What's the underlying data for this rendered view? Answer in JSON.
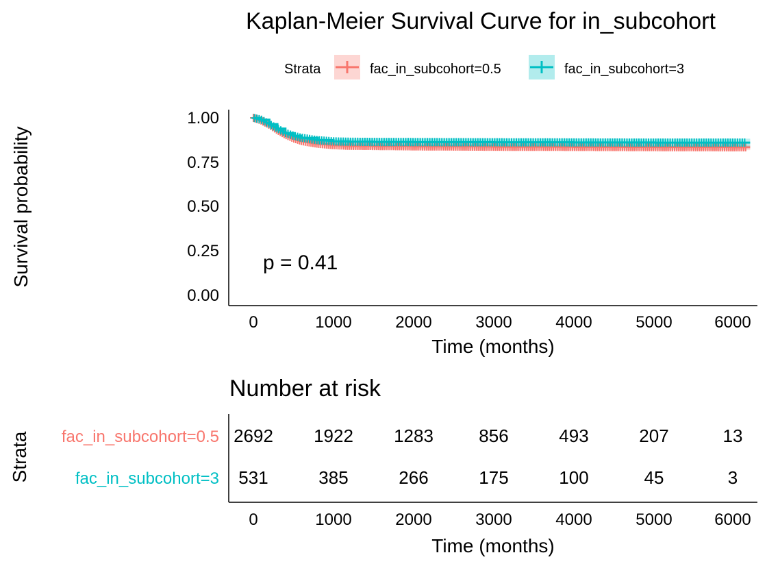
{
  "chart_data": [
    {
      "type": "line",
      "title": "Kaplan-Meier Survival Curve for in_subcohort",
      "xlabel": "Time (months)",
      "ylabel": "Survival probability",
      "xlim": [
        -300,
        6200
      ],
      "ylim": [
        0,
        1
      ],
      "x_ticks": [
        "0",
        "1000",
        "2000",
        "3000",
        "4000",
        "5000",
        "6000"
      ],
      "y_ticks": [
        "0.00",
        "0.25",
        "0.50",
        "0.75",
        "1.00"
      ],
      "legend": {
        "title": "Strata",
        "position": "top"
      },
      "annotation": "p = 0.41",
      "series": [
        {
          "name": "fac_in_subcohort=0.5",
          "color": "#F8766D",
          "x": [
            0,
            100,
            200,
            300,
            400,
            500,
            600,
            800,
            1000,
            1200,
            1500,
            2000,
            3000,
            4000,
            5000,
            6000,
            6200
          ],
          "y": [
            1.0,
            0.985,
            0.96,
            0.93,
            0.905,
            0.885,
            0.87,
            0.855,
            0.847,
            0.843,
            0.842,
            0.84,
            0.838,
            0.837,
            0.836,
            0.835,
            0.835
          ]
        },
        {
          "name": "fac_in_subcohort=3",
          "color": "#00BFC4",
          "x": [
            0,
            100,
            200,
            300,
            400,
            500,
            600,
            800,
            1000,
            1200,
            1500,
            2000,
            3000,
            4000,
            5000,
            6000,
            6200
          ],
          "y": [
            1.0,
            0.99,
            0.965,
            0.94,
            0.915,
            0.9,
            0.888,
            0.875,
            0.868,
            0.866,
            0.865,
            0.864,
            0.863,
            0.862,
            0.861,
            0.861,
            0.861
          ]
        }
      ]
    },
    {
      "type": "table",
      "title": "Number at risk",
      "xlabel": "Time (months)",
      "ylabel": "Strata",
      "x_ticks": [
        "0",
        "1000",
        "2000",
        "3000",
        "4000",
        "5000",
        "6000"
      ],
      "x": [
        0,
        1000,
        2000,
        3000,
        4000,
        5000,
        6000
      ],
      "rows": [
        {
          "name": "fac_in_subcohort=0.5",
          "color": "#F8766D",
          "values": [
            "2692",
            "1922",
            "1283",
            "856",
            "493",
            "207",
            "13"
          ]
        },
        {
          "name": "fac_in_subcohort=3",
          "color": "#00BFC4",
          "values": [
            "531",
            "385",
            "266",
            "175",
            "100",
            "45",
            "3"
          ]
        }
      ]
    }
  ]
}
